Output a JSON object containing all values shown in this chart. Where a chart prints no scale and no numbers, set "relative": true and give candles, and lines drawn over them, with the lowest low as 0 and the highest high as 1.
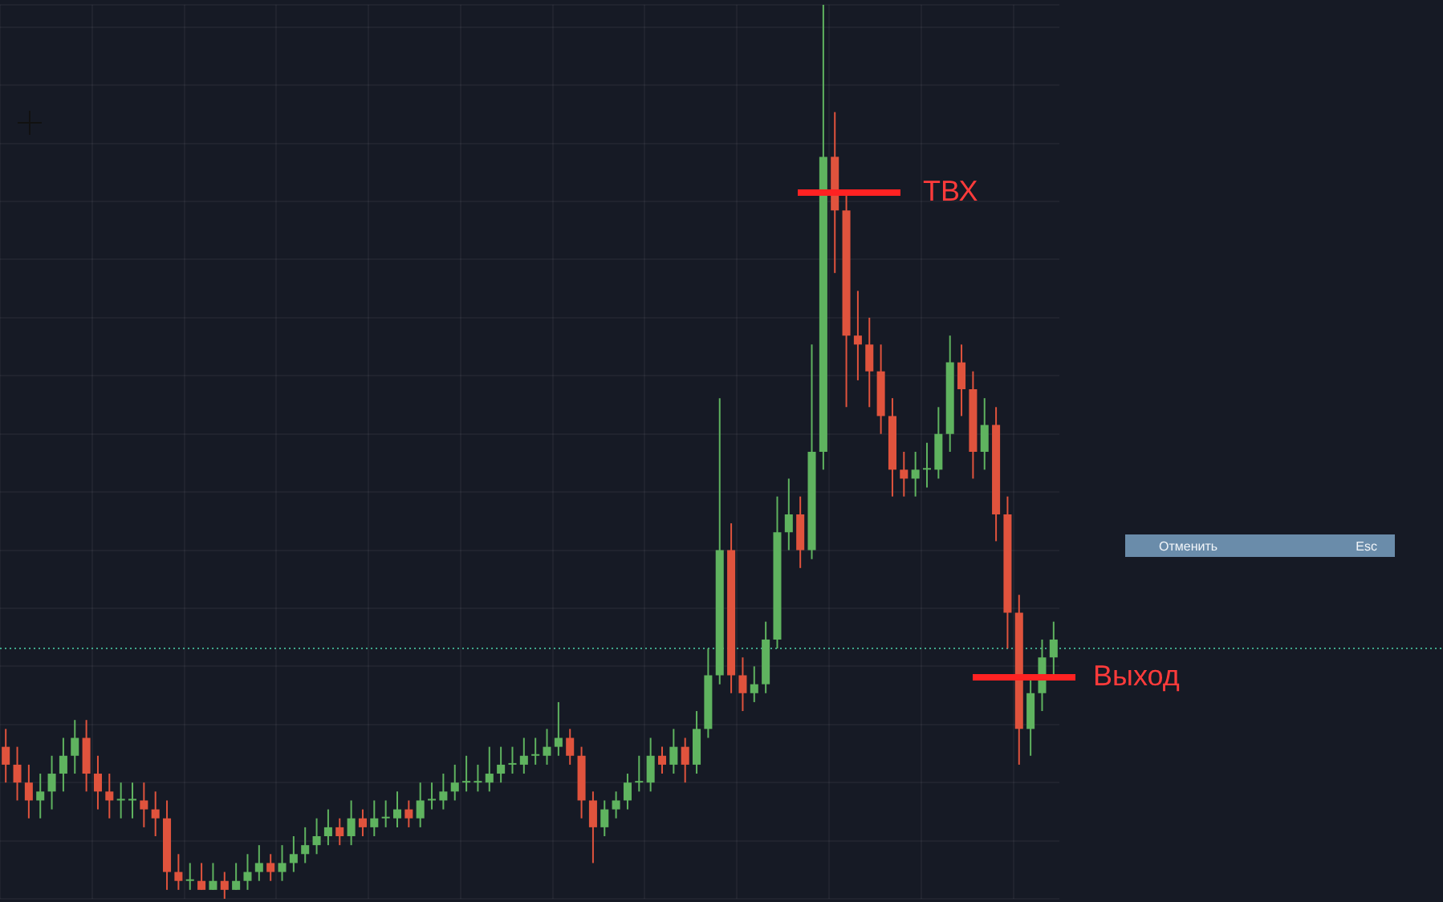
{
  "chart_data": {
    "type": "candlestick",
    "relative": true,
    "grid": true,
    "legend": false,
    "categories": [
      null,
      null,
      null,
      null,
      null,
      null,
      null,
      null,
      null,
      null,
      null,
      null,
      null,
      null,
      null,
      null,
      null,
      null,
      null,
      null,
      null,
      null,
      null,
      null,
      null,
      null,
      null,
      null,
      null,
      null,
      null,
      null,
      null,
      null,
      null,
      null,
      null,
      null,
      null,
      null,
      null,
      null,
      null,
      null,
      null,
      null,
      null,
      null,
      null,
      null,
      null,
      null,
      null,
      null,
      null,
      null,
      null,
      null,
      null,
      null,
      null,
      null,
      null,
      null,
      null,
      null,
      null,
      null,
      null,
      null,
      null,
      null,
      null,
      null,
      null,
      null,
      null,
      null,
      null,
      null,
      null,
      null,
      null,
      null,
      null,
      null,
      null,
      null,
      null,
      null,
      null,
      null
    ],
    "ohlc": [
      [
        0.17,
        0.19,
        0.13,
        0.15
      ],
      [
        0.15,
        0.17,
        0.11,
        0.13
      ],
      [
        0.13,
        0.15,
        0.09,
        0.11
      ],
      [
        0.11,
        0.14,
        0.09,
        0.12
      ],
      [
        0.12,
        0.16,
        0.1,
        0.14
      ],
      [
        0.14,
        0.18,
        0.12,
        0.16
      ],
      [
        0.16,
        0.2,
        0.14,
        0.18
      ],
      [
        0.18,
        0.2,
        0.12,
        0.14
      ],
      [
        0.14,
        0.16,
        0.1,
        0.12
      ],
      [
        0.12,
        0.14,
        0.09,
        0.11
      ],
      [
        0.11,
        0.13,
        0.09,
        0.11
      ],
      [
        0.11,
        0.13,
        0.09,
        0.11
      ],
      [
        0.11,
        0.13,
        0.08,
        0.1
      ],
      [
        0.1,
        0.12,
        0.07,
        0.09
      ],
      [
        0.09,
        0.11,
        0.01,
        0.03
      ],
      [
        0.03,
        0.05,
        0.01,
        0.02
      ],
      [
        0.02,
        0.04,
        0.01,
        0.02
      ],
      [
        0.02,
        0.04,
        0.01,
        0.01
      ],
      [
        0.01,
        0.04,
        0.01,
        0.02
      ],
      [
        0.02,
        0.03,
        0,
        0.01
      ],
      [
        0.01,
        0.04,
        0.01,
        0.02
      ],
      [
        0.02,
        0.05,
        0.01,
        0.03
      ],
      [
        0.03,
        0.06,
        0.02,
        0.04
      ],
      [
        0.04,
        0.05,
        0.02,
        0.03
      ],
      [
        0.03,
        0.06,
        0.02,
        0.04
      ],
      [
        0.04,
        0.07,
        0.03,
        0.05
      ],
      [
        0.05,
        0.08,
        0.04,
        0.06
      ],
      [
        0.06,
        0.09,
        0.05,
        0.07
      ],
      [
        0.07,
        0.1,
        0.06,
        0.08
      ],
      [
        0.08,
        0.09,
        0.06,
        0.07
      ],
      [
        0.07,
        0.11,
        0.06,
        0.09
      ],
      [
        0.09,
        0.1,
        0.07,
        0.08
      ],
      [
        0.08,
        0.11,
        0.07,
        0.09
      ],
      [
        0.09,
        0.11,
        0.08,
        0.09
      ],
      [
        0.09,
        0.12,
        0.08,
        0.1
      ],
      [
        0.1,
        0.11,
        0.08,
        0.09
      ],
      [
        0.09,
        0.13,
        0.08,
        0.11
      ],
      [
        0.11,
        0.13,
        0.1,
        0.11
      ],
      [
        0.11,
        0.14,
        0.1,
        0.12
      ],
      [
        0.12,
        0.15,
        0.11,
        0.13
      ],
      [
        0.13,
        0.16,
        0.12,
        0.13
      ],
      [
        0.13,
        0.15,
        0.12,
        0.13
      ],
      [
        0.13,
        0.17,
        0.12,
        0.14
      ],
      [
        0.14,
        0.17,
        0.13,
        0.15
      ],
      [
        0.15,
        0.17,
        0.14,
        0.15
      ],
      [
        0.15,
        0.18,
        0.14,
        0.16
      ],
      [
        0.16,
        0.18,
        0.15,
        0.16
      ],
      [
        0.16,
        0.19,
        0.15,
        0.17
      ],
      [
        0.17,
        0.22,
        0.16,
        0.18
      ],
      [
        0.18,
        0.19,
        0.15,
        0.16
      ],
      [
        0.16,
        0.17,
        0.09,
        0.11
      ],
      [
        0.11,
        0.12,
        0.04,
        0.08
      ],
      [
        0.08,
        0.11,
        0.07,
        0.1
      ],
      [
        0.1,
        0.12,
        0.09,
        0.11
      ],
      [
        0.11,
        0.14,
        0.1,
        0.13
      ],
      [
        0.13,
        0.16,
        0.12,
        0.13
      ],
      [
        0.13,
        0.18,
        0.12,
        0.16
      ],
      [
        0.16,
        0.17,
        0.14,
        0.15
      ],
      [
        0.15,
        0.19,
        0.14,
        0.17
      ],
      [
        0.17,
        0.18,
        0.13,
        0.15
      ],
      [
        0.15,
        0.21,
        0.14,
        0.19
      ],
      [
        0.19,
        0.28,
        0.18,
        0.25
      ],
      [
        0.25,
        0.56,
        0.24,
        0.39
      ],
      [
        0.39,
        0.42,
        0.23,
        0.25
      ],
      [
        0.25,
        0.27,
        0.21,
        0.23
      ],
      [
        0.23,
        0.26,
        0.22,
        0.24
      ],
      [
        0.24,
        0.31,
        0.23,
        0.29
      ],
      [
        0.29,
        0.45,
        0.28,
        0.41
      ],
      [
        0.41,
        0.47,
        0.39,
        0.43
      ],
      [
        0.43,
        0.45,
        0.37,
        0.39
      ],
      [
        0.39,
        0.62,
        0.38,
        0.5
      ],
      [
        0.5,
        1,
        0.48,
        0.83
      ],
      [
        0.83,
        0.88,
        0.7,
        0.77
      ],
      [
        0.77,
        0.79,
        0.55,
        0.63
      ],
      [
        0.63,
        0.68,
        0.58,
        0.62
      ],
      [
        0.62,
        0.65,
        0.55,
        0.59
      ],
      [
        0.59,
        0.62,
        0.52,
        0.54
      ],
      [
        0.54,
        0.56,
        0.45,
        0.48
      ],
      [
        0.48,
        0.5,
        0.45,
        0.47
      ],
      [
        0.47,
        0.5,
        0.45,
        0.48
      ],
      [
        0.48,
        0.51,
        0.46,
        0.48
      ],
      [
        0.48,
        0.55,
        0.47,
        0.52
      ],
      [
        0.52,
        0.63,
        0.5,
        0.6
      ],
      [
        0.6,
        0.62,
        0.54,
        0.57
      ],
      [
        0.57,
        0.59,
        0.47,
        0.5
      ],
      [
        0.5,
        0.56,
        0.48,
        0.53
      ],
      [
        0.53,
        0.55,
        0.4,
        0.43
      ],
      [
        0.43,
        0.45,
        0.28,
        0.32
      ],
      [
        0.32,
        0.34,
        0.15,
        0.19
      ],
      [
        0.19,
        0.25,
        0.16,
        0.23
      ],
      [
        0.23,
        0.29,
        0.21,
        0.27
      ],
      [
        0.27,
        0.31,
        0.25,
        0.29
      ]
    ],
    "ref_lines": [
      {
        "axis": "y",
        "value": 0.28,
        "color": "#3fa68a",
        "line_style": "dotted"
      }
    ],
    "annotations": [
      "ТВХ",
      "Выход",
      "Отменить",
      "Esc"
    ]
  }
}
